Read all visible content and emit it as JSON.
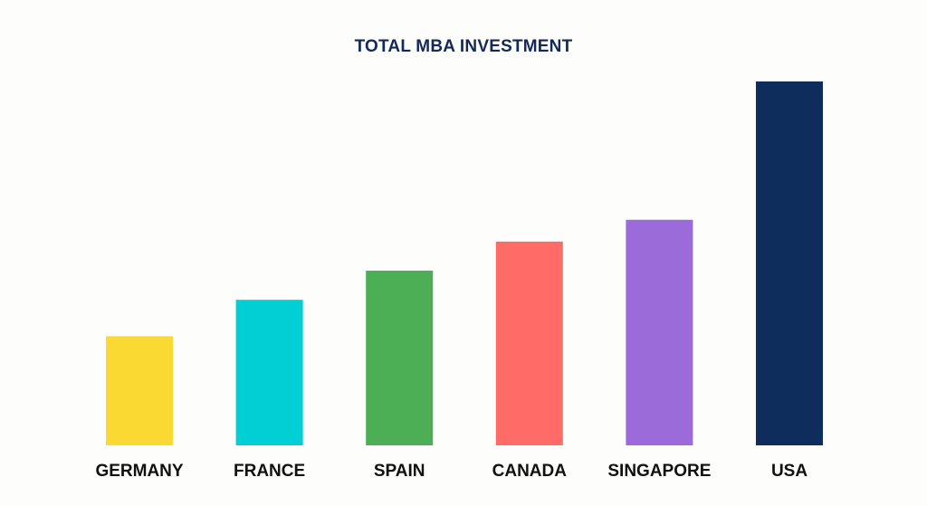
{
  "chart_data": {
    "type": "bar",
    "title": "TOTAL MBA INVESTMENT",
    "categories": [
      "GERMANY",
      "FRANCE",
      "SPAIN",
      "CANADA",
      "SINGAPORE",
      "USA"
    ],
    "values": [
      30,
      40,
      48,
      56,
      62,
      100
    ],
    "ylim": [
      0,
      100
    ],
    "grid": false,
    "legend": "none",
    "colors": [
      "#f9d932",
      "#00cfd4",
      "#4caf55",
      "#ff6b66",
      "#9a6bd9",
      "#0f2d5c"
    ],
    "title_color": "#13295a"
  }
}
